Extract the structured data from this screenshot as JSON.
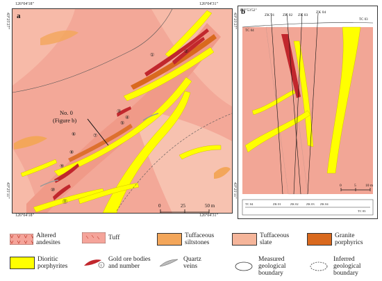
{
  "panel_a": {
    "label": "a",
    "coords": {
      "top_left": "126°04'18\"",
      "top_right": "126°04'31\"",
      "bottom_left": "126°04'18\"",
      "bottom_right": "126°04'31\"",
      "left_top": "43°25'27\"",
      "left_bottom": "43°25'11\"",
      "right_top": "43°25'27\"",
      "right_bottom": "43°25'11\""
    },
    "section_label_1": "No. 0",
    "section_label_2": "(Figure b)",
    "scale": {
      "tick0": "0",
      "tick1": "25",
      "tick2": "50 m"
    },
    "ore_numbers": [
      "①",
      "②",
      "③",
      "④",
      "⑤",
      "⑥",
      "⑦",
      "⑧",
      "⑨",
      "⑩",
      "⑪"
    ]
  },
  "panel_b": {
    "label": "b",
    "azimuth": "109°53'52\"",
    "holes_top": [
      "ZK 01",
      "ZK 02",
      "ZK 03",
      "ZK 04"
    ],
    "tc_labels": [
      "TC 04",
      "TC 03"
    ],
    "scale": {
      "tick0": "0",
      "tick1": "5",
      "tick2": "10 m"
    },
    "plan": {
      "holes": [
        "ZK 01",
        "ZK 02",
        "ZK 03",
        "ZK 04"
      ],
      "tc_left": "TC 04",
      "tc_right": "TC 03"
    }
  },
  "legend": [
    {
      "key": "altered",
      "line1": "Altered",
      "line2": "andesites",
      "color": "#f5a49a"
    },
    {
      "key": "tuff",
      "line1": "Tuff",
      "line2": "",
      "color": "#f5a49a"
    },
    {
      "key": "siltstones",
      "line1": "Tuffaceous",
      "line2": "siltstones",
      "color": "#f3a65a"
    },
    {
      "key": "slate",
      "line1": "Tuffaceous",
      "line2": "slate",
      "color": "#f5b59a"
    },
    {
      "key": "granite",
      "line1": "Granite",
      "line2": "porphyrics",
      "color": "#d9691e"
    },
    {
      "key": "dioritic",
      "line1": "Dioritic",
      "line2": "porphyrites",
      "color": "#ffff00"
    },
    {
      "key": "gold",
      "line1": "Gold ore bodies",
      "line2": "and number",
      "color": "#c1272d"
    },
    {
      "key": "quartz",
      "line1": "Quartz",
      "line2": "veins",
      "color": "#bbbbbb"
    },
    {
      "key": "measured",
      "line1": "Measured",
      "line2": "geological",
      "line3": "boundary",
      "color": "#333333"
    },
    {
      "key": "inferred",
      "line1": "Inferred",
      "line2": "geological",
      "line3": "boundary",
      "color": "#333333"
    }
  ]
}
